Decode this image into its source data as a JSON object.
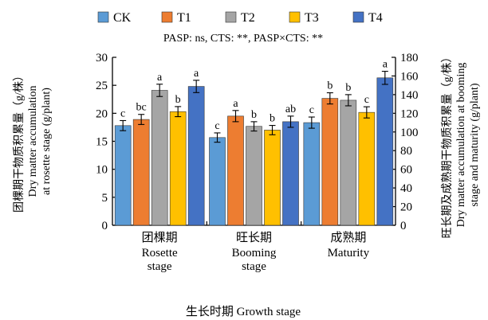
{
  "chart_data": {
    "type": "bar",
    "subtitle": "PASP: ns, CTS: **, PASP×CTS: **",
    "xlabel": "生长时期 Growth stage",
    "ylabel_left": [
      "团棵期干物质积累量（g/株）",
      "Dry matter accumulation",
      "at rosette stage (g/plant)"
    ],
    "ylabel_right": [
      "旺长期及成熟期干物质积累量（g/株）",
      "Dry matter accumulation at booming",
      "stage and maturity (g/plant)"
    ],
    "ylim_left": [
      0,
      30
    ],
    "ylim_right": [
      0,
      180
    ],
    "yticks_left": [
      "0",
      "5",
      "10",
      "15",
      "20",
      "25",
      "30"
    ],
    "yticks_right": [
      "0",
      "20",
      "40",
      "60",
      "80",
      "100",
      "120",
      "140",
      "160",
      "180"
    ],
    "categories": [
      {
        "cn": "团棵期",
        "en": [
          "Rosette",
          "stage"
        ],
        "axis": "left"
      },
      {
        "cn": "旺长期",
        "en": [
          "Booming",
          "stage"
        ],
        "axis": "right"
      },
      {
        "cn": "成熟期",
        "en": [
          "Maturity"
        ],
        "axis": "right"
      }
    ],
    "series": [
      {
        "name": "CK",
        "color": "#5B9BD5",
        "values": [
          17.8,
          94,
          110
        ],
        "errors": [
          0.9,
          5,
          6
        ],
        "labels": [
          "c",
          "c",
          "c"
        ]
      },
      {
        "name": "T1",
        "color": "#ED7D31",
        "values": [
          18.9,
          117,
          136
        ],
        "errors": [
          0.9,
          6,
          6
        ],
        "labels": [
          "bc",
          "a",
          "b"
        ]
      },
      {
        "name": "T2",
        "color": "#A5A5A5",
        "values": [
          24.1,
          106,
          134
        ],
        "errors": [
          1.1,
          5,
          6
        ],
        "labels": [
          "a",
          "b",
          "b"
        ]
      },
      {
        "name": "T3",
        "color": "#FFC000",
        "values": [
          20.3,
          102,
          121
        ],
        "errors": [
          0.9,
          5,
          6
        ],
        "labels": [
          "b",
          "b",
          "c"
        ]
      },
      {
        "name": "T4",
        "color": "#4472C4",
        "values": [
          24.8,
          111,
          158
        ],
        "errors": [
          1.1,
          6,
          7
        ],
        "labels": [
          "a",
          "ab",
          "a"
        ]
      }
    ]
  }
}
